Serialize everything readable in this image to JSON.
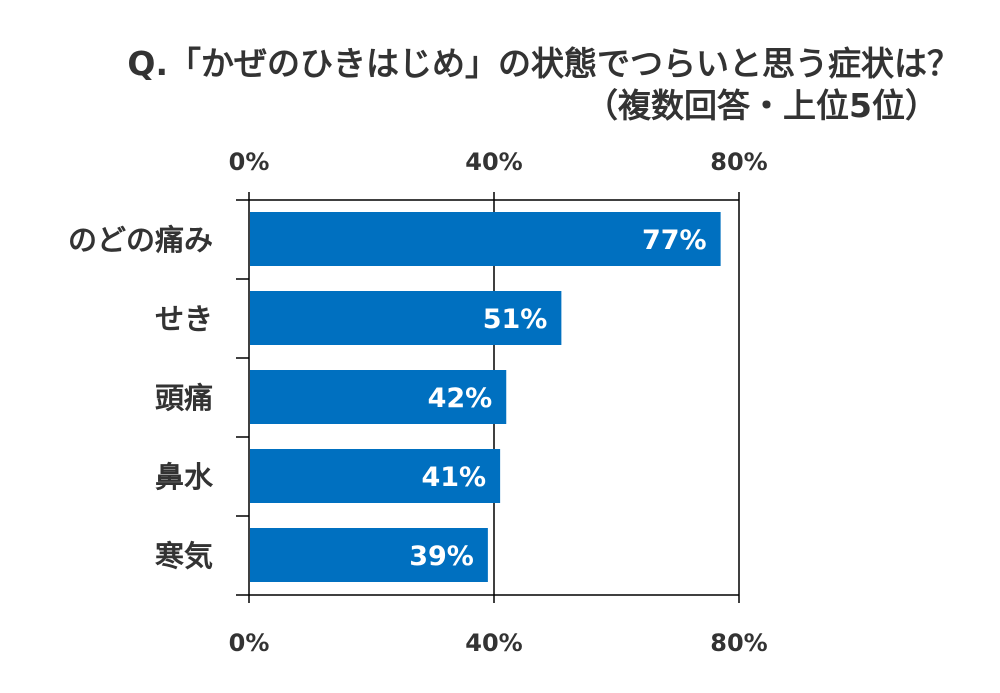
{
  "chart_data": {
    "type": "bar",
    "orientation": "horizontal",
    "title": "Q.「かぜのひきはじめ」の状態でつらいと思う症状は？",
    "subtitle": "（複数回答・上位5位）",
    "categories": [
      "のどの痛み",
      "せき",
      "頭痛",
      "鼻水",
      "寒気"
    ],
    "values": [
      77,
      51,
      42,
      41,
      39
    ],
    "value_labels": [
      "77%",
      "51%",
      "42%",
      "41%",
      "39%"
    ],
    "xlim": [
      0,
      80
    ],
    "xticks": [
      0,
      40,
      80
    ],
    "xtick_labels": [
      "0%",
      "40%",
      "80%"
    ],
    "xtick_positions": "top-and-bottom",
    "grid": true,
    "legend": "none",
    "colors": {
      "bar": "#0070c0",
      "text": "#333333",
      "axis": "#000000"
    }
  }
}
